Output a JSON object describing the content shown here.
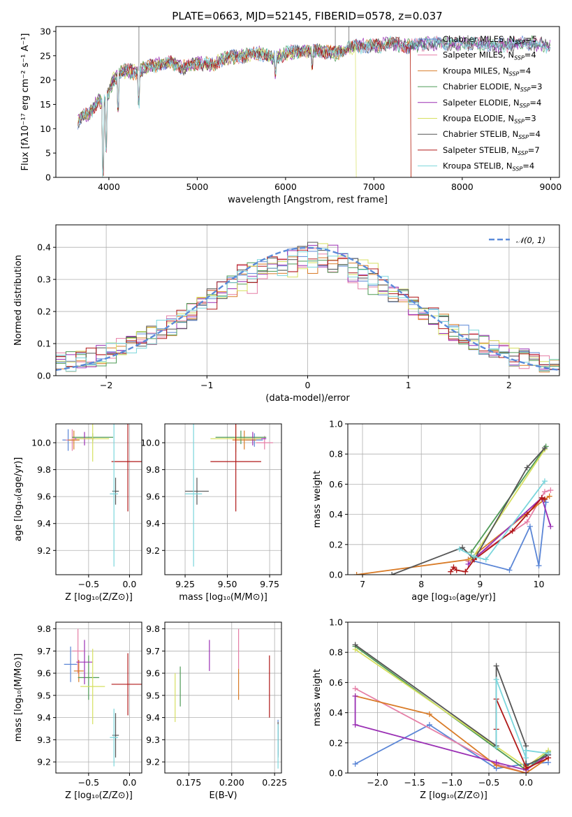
{
  "figure": {
    "title": "PLATE=0663, MJD=52145, FIBERID=0578, z=0.037"
  },
  "colors": {
    "Chabrier MILES": "#5b86d6",
    "Salpeter MILES": "#e57fa6",
    "Kroupa MILES": "#d97b27",
    "Chabrier ELODIE": "#4e9a56",
    "Salpeter ELODIE": "#9a2fb4",
    "Kroupa ELODIE": "#d6e060",
    "Chabrier STELIB": "#555555",
    "Salpeter STELIB": "#b01818",
    "Kroupa STELIB": "#7bd6dc"
  },
  "chart_data": [
    {
      "id": "spectrum",
      "type": "line",
      "title": "PLATE=0663, MJD=52145, FIBERID=0578, z=0.037",
      "xlabel": "wavelength [Angstrom, rest frame]",
      "ylabel": "Flux [fλ10⁻¹⁷ erg cm⁻² s⁻¹ A⁻¹]",
      "xlim": [
        3400,
        9100
      ],
      "ylim": [
        0,
        31
      ],
      "xticks": [
        4000,
        5000,
        6000,
        7000,
        8000,
        9000
      ],
      "yticks": [
        0,
        5,
        10,
        15,
        20,
        25,
        30
      ],
      "grid": false,
      "legend": "top-right",
      "legend_entries": [
        {
          "series": "Chabrier MILES",
          "label": "Chabrier MILES, N",
          "sub": "SSP",
          "tail": "=5"
        },
        {
          "series": "Salpeter MILES",
          "label": "Salpeter MILES, N",
          "sub": "SSP",
          "tail": "=4"
        },
        {
          "series": "Kroupa MILES",
          "label": "Kroupa MILES, N",
          "sub": "SSP",
          "tail": "=4"
        },
        {
          "series": "Chabrier ELODIE",
          "label": "Chabrier ELODIE, N",
          "sub": "SSP",
          "tail": "=3"
        },
        {
          "series": "Salpeter ELODIE",
          "label": "Salpeter ELODIE, N",
          "sub": "SSP",
          "tail": "=4"
        },
        {
          "series": "Kroupa ELODIE",
          "label": "Kroupa ELODIE, N",
          "sub": "SSP",
          "tail": "=3"
        },
        {
          "series": "Chabrier STELIB",
          "label": "Chabrier STELIB, N",
          "sub": "SSP",
          "tail": "=4"
        },
        {
          "series": "Salpeter STELIB",
          "label": "Salpeter STELIB, N",
          "sub": "SSP",
          "tail": "=7"
        },
        {
          "series": "Kroupa STELIB",
          "label": "Kroupa STELIB, N",
          "sub": "SSP",
          "tail": "=4"
        }
      ],
      "data": {
        "x": [
          3650,
          3700,
          3760,
          3820,
          3880,
          3930,
          3970,
          4050,
          4100,
          4200,
          4300,
          4400,
          4500,
          4700,
          4861,
          5000,
          5175,
          5300,
          5500,
          5700,
          5890,
          6000,
          6200,
          6400,
          6563,
          6700,
          6800,
          7000,
          7200,
          7400,
          7600,
          7800,
          8000,
          8200,
          8400,
          8600,
          8800,
          9000
        ],
        "y": [
          11.5,
          12.5,
          13,
          14,
          16,
          15,
          16,
          20,
          21,
          22,
          21.5,
          22.5,
          23,
          23.5,
          22.5,
          23.5,
          23,
          24.5,
          25,
          25.5,
          24.5,
          25.5,
          26,
          26,
          25.5,
          26.5,
          27,
          27,
          27.5,
          27,
          27.5,
          27.5,
          27.5,
          27.5,
          27,
          27.5,
          27.5,
          27
        ],
        "absorption": [
          {
            "x": 3933,
            "y": 0
          },
          {
            "x": 3968,
            "y": 5
          },
          {
            "x": 4102,
            "y": 13
          },
          {
            "x": 4340,
            "y": 14
          },
          {
            "x": 5890,
            "y": 20
          },
          {
            "x": 6300,
            "y": 22
          }
        ],
        "emission": [
          {
            "x": 4340,
            "y": 31
          },
          {
            "x": 6563,
            "y": 31
          },
          {
            "x": 6717,
            "y": 31
          }
        ],
        "drops": [
          {
            "series": "Kroupa ELODIE",
            "x": 6800
          },
          {
            "series": "Kroupa MILES",
            "x": 7420
          },
          {
            "series": "Salpeter STELIB",
            "x": 7420
          }
        ]
      }
    },
    {
      "id": "residuals",
      "type": "line",
      "xlabel": "(data-model)/error",
      "ylabel": "Normed distribution",
      "xlim": [
        -2.5,
        2.5
      ],
      "ylim": [
        0,
        0.47
      ],
      "xticks": [
        -2,
        -1,
        0,
        1,
        2
      ],
      "yticks": [
        0.0,
        0.1,
        0.2,
        0.3,
        0.4
      ],
      "grid": true,
      "legend": "top-right",
      "reference": {
        "label": "𝒩(0, 1)",
        "mean": 0,
        "sigma": 1
      },
      "bins": {
        "start": -2.5,
        "width": 0.1,
        "count": 50
      }
    },
    {
      "id": "age-vs-Z",
      "type": "scatter",
      "xlabel": "Z [log₁₀(Z/Z⊙)]",
      "ylabel": "age  [log₁₀(age/yr)]",
      "xlim": [
        -0.9,
        0.15
      ],
      "ylim": [
        9.02,
        10.14
      ],
      "xticks": [
        -0.5,
        0.0
      ],
      "yticks": [
        9.2,
        9.4,
        9.6,
        9.8,
        10.0
      ],
      "grid": true,
      "points": [
        {
          "series": "Chabrier MILES",
          "x": -0.75,
          "y": 10.02,
          "xerr": 0.07,
          "yerr": 0.08
        },
        {
          "series": "Salpeter MILES",
          "x": -0.7,
          "y": 10.02,
          "xerr": 0.08,
          "yerr": 0.08
        },
        {
          "series": "Kroupa MILES",
          "x": -0.68,
          "y": 10.02,
          "xerr": 0.07,
          "yerr": 0.07
        },
        {
          "series": "Chabrier ELODIE",
          "x": -0.45,
          "y": 10.04,
          "xerr": 0.25,
          "yerr": 0.03
        },
        {
          "series": "Salpeter ELODIE",
          "x": -0.55,
          "y": 10.03,
          "xerr": 0.12,
          "yerr": 0.05
        },
        {
          "series": "Kroupa ELODIE",
          "x": -0.45,
          "y": 10.03,
          "xerr": 0.2,
          "yerr": 0.17
        },
        {
          "series": "Chabrier STELIB",
          "x": -0.17,
          "y": 9.64,
          "xerr": 0.04,
          "yerr": 0.1
        },
        {
          "series": "Salpeter STELIB",
          "x": -0.02,
          "y": 9.86,
          "xerr": 0.2,
          "yerr": 0.37
        },
        {
          "series": "Kroupa STELIB",
          "x": -0.19,
          "y": 9.62,
          "xerr": 0.05,
          "yerr": 0.54
        }
      ]
    },
    {
      "id": "age-vs-mass",
      "type": "scatter",
      "xlabel": "mass [log₁₀(M/M⊙)]",
      "ylabel": "",
      "xlim": [
        9.13,
        9.82
      ],
      "ylim": [
        9.02,
        10.14
      ],
      "xticks": [
        9.25,
        9.5,
        9.75
      ],
      "yticks": [
        9.2,
        9.4,
        9.6,
        9.8,
        10.0
      ],
      "grid": true,
      "points": [
        {
          "series": "Chabrier MILES",
          "x": 9.66,
          "y": 10.02,
          "xerr": 0.05,
          "yerr": 0.05
        },
        {
          "series": "Salpeter MILES",
          "x": 9.72,
          "y": 10.0,
          "xerr": 0.05,
          "yerr": 0.05
        },
        {
          "series": "Kroupa MILES",
          "x": 9.6,
          "y": 10.02,
          "xerr": 0.07,
          "yerr": 0.07
        },
        {
          "series": "Chabrier ELODIE",
          "x": 9.58,
          "y": 10.04,
          "xerr": 0.15,
          "yerr": 0.05
        },
        {
          "series": "Salpeter ELODIE",
          "x": 9.65,
          "y": 10.03,
          "xerr": 0.08,
          "yerr": 0.05
        },
        {
          "series": "Kroupa ELODIE",
          "x": 9.55,
          "y": 10.03,
          "xerr": 0.15,
          "yerr": 0.1
        },
        {
          "series": "Chabrier STELIB",
          "x": 9.32,
          "y": 9.64,
          "xerr": 0.07,
          "yerr": 0.1
        },
        {
          "series": "Salpeter STELIB",
          "x": 9.55,
          "y": 9.86,
          "xerr": 0.15,
          "yerr": 0.37
        },
        {
          "series": "Kroupa STELIB",
          "x": 9.3,
          "y": 9.62,
          "xerr": 0.05,
          "yerr": 0.54
        }
      ]
    },
    {
      "id": "mass-weight-vs-age",
      "type": "line",
      "xlabel": "age  [log₁₀(age/yr)]",
      "ylabel": "mass weight",
      "xlim": [
        6.75,
        10.35
      ],
      "ylim": [
        0,
        1
      ],
      "xticks": [
        7,
        8,
        9,
        10
      ],
      "yticks": [
        0.0,
        0.2,
        0.4,
        0.6,
        0.8,
        1.0
      ],
      "grid": true,
      "series": [
        {
          "series": "Chabrier MILES",
          "x": [
            8.8,
            9.5,
            9.85,
            10.0,
            10.12
          ],
          "y": [
            0.1,
            0.03,
            0.32,
            0.06,
            0.48
          ]
        },
        {
          "series": "Salpeter MILES",
          "x": [
            8.8,
            9.8,
            10.1,
            10.2
          ],
          "y": [
            0.09,
            0.35,
            0.55,
            0.56
          ]
        },
        {
          "series": "Kroupa MILES",
          "x": [
            6.9,
            8.8,
            10.1,
            10.18
          ],
          "y": [
            0.0,
            0.1,
            0.5,
            0.52
          ]
        },
        {
          "series": "Chabrier ELODIE",
          "x": [
            8.85,
            10.12
          ],
          "y": [
            0.15,
            0.85
          ]
        },
        {
          "series": "Salpeter ELODIE",
          "x": [
            8.8,
            10.05,
            10.2
          ],
          "y": [
            0.07,
            0.51,
            0.32
          ]
        },
        {
          "series": "Kroupa ELODIE",
          "x": [
            8.85,
            10.1
          ],
          "y": [
            0.1,
            0.83
          ]
        },
        {
          "series": "Chabrier STELIB",
          "x": [
            7.5,
            8.7,
            8.9,
            9.8,
            10.1
          ],
          "y": [
            0.0,
            0.18,
            0.1,
            0.71,
            0.84
          ]
        },
        {
          "series": "Salpeter STELIB",
          "x": [
            8.5,
            8.55,
            8.6,
            8.75,
            8.9,
            9.55,
            9.8,
            10.05,
            10.1
          ],
          "y": [
            0.02,
            0.05,
            0.03,
            0.02,
            0.1,
            0.29,
            0.4,
            0.51,
            0.5
          ]
        },
        {
          "series": "Kroupa STELIB",
          "x": [
            8.65,
            8.9,
            9.1,
            10.1
          ],
          "y": [
            0.17,
            0.12,
            0.1,
            0.62
          ]
        }
      ]
    },
    {
      "id": "mass-vs-Z",
      "type": "scatter",
      "xlabel": "Z [log₁₀(Z/Z⊙)]",
      "ylabel": "mass [log₁₀(M/M⊙)]",
      "xlim": [
        -0.9,
        0.15
      ],
      "ylim": [
        9.15,
        9.83
      ],
      "xticks": [
        -0.5,
        0.0
      ],
      "yticks": [
        9.2,
        9.3,
        9.4,
        9.5,
        9.6,
        9.7,
        9.8
      ],
      "grid": true,
      "points": [
        {
          "series": "Chabrier MILES",
          "x": -0.72,
          "y": 9.64,
          "xerr": 0.08,
          "yerr": 0.08
        },
        {
          "series": "Salpeter MILES",
          "x": -0.63,
          "y": 9.7,
          "xerr": 0.07,
          "yerr": 0.1
        },
        {
          "series": "Kroupa MILES",
          "x": -0.62,
          "y": 9.61,
          "xerr": 0.06,
          "yerr": 0.05
        },
        {
          "series": "Chabrier ELODIE",
          "x": -0.5,
          "y": 9.58,
          "xerr": 0.13,
          "yerr": 0.1
        },
        {
          "series": "Salpeter ELODIE",
          "x": -0.55,
          "y": 9.65,
          "xerr": 0.1,
          "yerr": 0.1
        },
        {
          "series": "Kroupa ELODIE",
          "x": -0.45,
          "y": 9.54,
          "xerr": 0.15,
          "yerr": 0.17
        },
        {
          "series": "Chabrier STELIB",
          "x": -0.17,
          "y": 9.32,
          "xerr": 0.04,
          "yerr": 0.1
        },
        {
          "series": "Salpeter STELIB",
          "x": -0.02,
          "y": 9.55,
          "xerr": 0.2,
          "yerr": 0.14
        },
        {
          "series": "Kroupa STELIB",
          "x": -0.19,
          "y": 9.31,
          "xerr": 0.05,
          "yerr": 0.13
        }
      ]
    },
    {
      "id": "mass-vs-ebv",
      "type": "scatter",
      "xlabel": "E(B-V)",
      "ylabel": "",
      "xlim": [
        0.161,
        0.229
      ],
      "ylim": [
        9.15,
        9.83
      ],
      "xticks": [
        0.175,
        0.2,
        0.225
      ],
      "yticks": [
        9.2,
        9.3,
        9.4,
        9.5,
        9.6,
        9.7,
        9.8
      ],
      "grid": true,
      "points": [
        {
          "series": "Chabrier MILES",
          "x": 0.227,
          "y": 9.31,
          "xerr": 0,
          "yerr": 0.08
        },
        {
          "series": "Salpeter MILES",
          "x": 0.204,
          "y": 9.71,
          "xerr": 0,
          "yerr": 0.09
        },
        {
          "series": "Kroupa MILES",
          "x": 0.204,
          "y": 9.55,
          "xerr": 0,
          "yerr": 0.07
        },
        {
          "series": "Chabrier ELODIE",
          "x": 0.17,
          "y": 9.54,
          "xerr": 0,
          "yerr": 0.09
        },
        {
          "series": "Salpeter ELODIE",
          "x": 0.187,
          "y": 9.68,
          "xerr": 0,
          "yerr": 0.07
        },
        {
          "series": "Kroupa ELODIE",
          "x": 0.167,
          "y": 9.49,
          "xerr": 0,
          "yerr": 0.11
        },
        {
          "series": "Chabrier STELIB",
          "x": 0.227,
          "y": 9.3,
          "xerr": 0,
          "yerr": 0.08
        },
        {
          "series": "Salpeter STELIB",
          "x": 0.222,
          "y": 9.54,
          "xerr": 0,
          "yerr": 0.14
        },
        {
          "series": "Kroupa STELIB",
          "x": 0.227,
          "y": 9.27,
          "xerr": 0,
          "yerr": 0.1
        }
      ]
    },
    {
      "id": "mass-weight-vs-Z",
      "type": "line",
      "xlabel": "Z [log₁₀(Z/Z⊙)]",
      "ylabel": "mass weight",
      "xlim": [
        -2.4,
        0.45
      ],
      "ylim": [
        0,
        1
      ],
      "xticks": [
        -2.0,
        -1.5,
        -1.0,
        -0.5,
        0.0
      ],
      "yticks": [
        0.0,
        0.2,
        0.4,
        0.6,
        0.8,
        1.0
      ],
      "grid": true,
      "series": [
        {
          "series": "Chabrier MILES",
          "x": [
            -2.3,
            -1.3,
            -0.4,
            0.0,
            0.3
          ],
          "y": [
            0.06,
            0.32,
            0.03,
            0.06,
            0.07
          ]
        },
        {
          "series": "Salpeter MILES",
          "x": [
            -2.3,
            -0.4,
            0.0,
            0.3
          ],
          "y": [
            0.56,
            0.06,
            0.0,
            0.1
          ]
        },
        {
          "series": "Kroupa MILES",
          "x": [
            -2.3,
            -1.3,
            -0.4,
            0.0,
            0.3
          ],
          "y": [
            0.51,
            0.39,
            0.05,
            0.0,
            0.1
          ]
        },
        {
          "series": "Chabrier ELODIE",
          "x": [
            -2.3,
            0.0,
            0.3
          ],
          "y": [
            0.84,
            0.02,
            0.14
          ]
        },
        {
          "series": "Salpeter ELODIE",
          "x": [
            -2.3,
            -2.3,
            -0.4,
            0.0,
            0.3
          ],
          "y": [
            0.51,
            0.32,
            0.07,
            0.02,
            0.12
          ]
        },
        {
          "series": "Kroupa ELODIE",
          "x": [
            -2.3,
            0.0,
            0.3
          ],
          "y": [
            0.82,
            0.04,
            0.15
          ]
        },
        {
          "series": "Chabrier STELIB",
          "x": [
            -2.3,
            -0.4,
            -0.4,
            0.0,
            0.0,
            0.3
          ],
          "y": [
            0.85,
            0.18,
            0.71,
            0.18,
            0.05,
            0.12
          ]
        },
        {
          "series": "Salpeter STELIB",
          "x": [
            -0.4,
            -0.4,
            0.0,
            0.0,
            0.3
          ],
          "y": [
            0.29,
            0.49,
            0.04,
            0.03,
            0.1
          ]
        },
        {
          "series": "Kroupa STELIB",
          "x": [
            -0.4,
            -0.4,
            0.0,
            0.0,
            0.3
          ],
          "y": [
            0.17,
            0.62,
            0.1,
            0.15,
            0.13
          ]
        }
      ]
    }
  ]
}
